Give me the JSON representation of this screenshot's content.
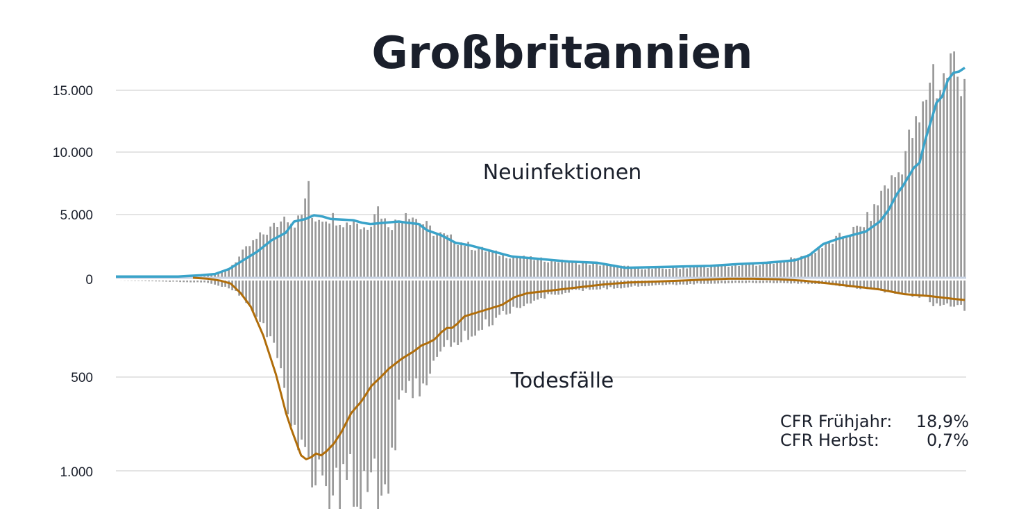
{
  "chart_data": {
    "type": "bar",
    "title": "Großbritannien",
    "top_series_label": "Neuinfektionen",
    "bottom_series_label": "Todesfälle",
    "top_yticks": [
      "15.000",
      "10.000",
      "5.000",
      "0"
    ],
    "bottom_yticks": [
      "500",
      "1.000"
    ],
    "top_ylim": [
      0,
      16000
    ],
    "bottom_ylim": [
      0,
      1100
    ],
    "colors": {
      "bars": "#9a9a9a",
      "infections_avg": "#3aa3c9",
      "deaths_avg": "#b06d0a",
      "grid": "#dcdcdc",
      "zero": "#c8d3e3"
    },
    "n_days": 245,
    "infections_bars_anchors": [
      [
        0,
        0
      ],
      [
        20,
        20
      ],
      [
        26,
        60
      ],
      [
        30,
        150
      ],
      [
        33,
        300
      ],
      [
        36,
        600
      ],
      [
        38,
        900
      ],
      [
        40,
        1400
      ],
      [
        42,
        2000
      ],
      [
        45,
        2700
      ],
      [
        47,
        3100
      ],
      [
        49,
        3500
      ],
      [
        52,
        4000
      ],
      [
        55,
        4500
      ],
      [
        56,
        5400
      ],
      [
        58,
        4600
      ],
      [
        60,
        4400
      ],
      [
        62,
        5000
      ],
      [
        64,
        7800
      ],
      [
        65,
        4800
      ],
      [
        70,
        4900
      ],
      [
        75,
        4700
      ],
      [
        77,
        4300
      ],
      [
        80,
        4800
      ],
      [
        82,
        3900
      ],
      [
        85,
        4300
      ],
      [
        86,
        5500
      ],
      [
        88,
        5600
      ],
      [
        90,
        4500
      ],
      [
        92,
        4300
      ],
      [
        95,
        4500
      ],
      [
        97,
        5500
      ],
      [
        100,
        4800
      ],
      [
        103,
        4300
      ],
      [
        106,
        3700
      ],
      [
        110,
        3300
      ],
      [
        115,
        2900
      ],
      [
        120,
        2400
      ],
      [
        125,
        2100
      ],
      [
        130,
        1800
      ],
      [
        140,
        1500
      ],
      [
        150,
        1300
      ],
      [
        160,
        1100
      ],
      [
        170,
        900
      ],
      [
        180,
        700
      ],
      [
        190,
        800
      ],
      [
        200,
        900
      ],
      [
        210,
        1000
      ],
      [
        220,
        1200
      ],
      [
        230,
        1600
      ],
      [
        235,
        2200
      ],
      [
        240,
        2800
      ],
      [
        245,
        3500
      ],
      [
        250,
        4000
      ],
      [
        255,
        5500
      ],
      [
        258,
        7400
      ],
      [
        260,
        7600
      ],
      [
        263,
        8500
      ],
      [
        266,
        10800
      ],
      [
        268,
        11700
      ],
      [
        270,
        12300
      ],
      [
        272,
        14400
      ],
      [
        274,
        17200
      ],
      [
        276,
        15000
      ],
      [
        279,
        16300
      ],
      [
        281,
        17700
      ],
      [
        283,
        15800
      ],
      [
        285,
        16500
      ]
    ],
    "infections_avg_anchors": [
      [
        0,
        100
      ],
      [
        22,
        100
      ],
      [
        26,
        150
      ],
      [
        30,
        200
      ],
      [
        35,
        300
      ],
      [
        40,
        700
      ],
      [
        45,
        1400
      ],
      [
        50,
        2100
      ],
      [
        55,
        3000
      ],
      [
        60,
        3600
      ],
      [
        63,
        4500
      ],
      [
        67,
        4700
      ],
      [
        70,
        5000
      ],
      [
        73,
        4900
      ],
      [
        76,
        4700
      ],
      [
        80,
        4650
      ],
      [
        84,
        4600
      ],
      [
        87,
        4400
      ],
      [
        90,
        4300
      ],
      [
        95,
        4400
      ],
      [
        100,
        4500
      ],
      [
        103,
        4400
      ],
      [
        107,
        4300
      ],
      [
        110,
        3800
      ],
      [
        115,
        3400
      ],
      [
        120,
        2800
      ],
      [
        125,
        2600
      ],
      [
        130,
        2300
      ],
      [
        140,
        1700
      ],
      [
        150,
        1500
      ],
      [
        160,
        1300
      ],
      [
        170,
        1200
      ],
      [
        180,
        800
      ],
      [
        190,
        850
      ],
      [
        200,
        900
      ],
      [
        210,
        950
      ],
      [
        220,
        1100
      ],
      [
        230,
        1200
      ],
      [
        235,
        1300
      ],
      [
        240,
        1400
      ],
      [
        245,
        1800
      ],
      [
        250,
        2700
      ],
      [
        255,
        3100
      ],
      [
        260,
        3400
      ],
      [
        265,
        3700
      ],
      [
        270,
        4500
      ],
      [
        273,
        5400
      ],
      [
        276,
        6700
      ],
      [
        278,
        7300
      ],
      [
        282,
        8800
      ],
      [
        284,
        9200
      ],
      [
        286,
        11000
      ],
      [
        288,
        12500
      ],
      [
        290,
        14000
      ],
      [
        292,
        14500
      ],
      [
        294,
        15800
      ],
      [
        296,
        16400
      ],
      [
        298,
        16500
      ],
      [
        300,
        16800
      ]
    ],
    "deaths_bars_anchors": [
      [
        0,
        0
      ],
      [
        30,
        10
      ],
      [
        34,
        25
      ],
      [
        38,
        40
      ],
      [
        42,
        80
      ],
      [
        46,
        150
      ],
      [
        50,
        260
      ],
      [
        53,
        330
      ],
      [
        56,
        600
      ],
      [
        58,
        700
      ],
      [
        60,
        780
      ],
      [
        63,
        900
      ],
      [
        65,
        950
      ],
      [
        67,
        1000
      ],
      [
        69,
        1050
      ],
      [
        71,
        1150
      ],
      [
        73,
        1100
      ],
      [
        75,
        1100
      ],
      [
        78,
        1000
      ],
      [
        81,
        1100
      ],
      [
        84,
        980
      ],
      [
        86,
        950
      ],
      [
        89,
        1160
      ],
      [
        91,
        1000
      ],
      [
        93,
        800
      ],
      [
        96,
        650
      ],
      [
        99,
        560
      ],
      [
        102,
        520
      ],
      [
        105,
        480
      ],
      [
        108,
        420
      ],
      [
        111,
        340
      ],
      [
        115,
        300
      ],
      [
        120,
        280
      ],
      [
        125,
        220
      ],
      [
        130,
        170
      ],
      [
        135,
        130
      ],
      [
        140,
        110
      ],
      [
        145,
        80
      ],
      [
        150,
        60
      ],
      [
        160,
        45
      ],
      [
        170,
        35
      ],
      [
        180,
        25
      ],
      [
        190,
        20
      ],
      [
        200,
        15
      ],
      [
        210,
        12
      ],
      [
        220,
        12
      ],
      [
        230,
        15
      ],
      [
        240,
        20
      ],
      [
        250,
        40
      ],
      [
        260,
        60
      ],
      [
        265,
        70
      ],
      [
        270,
        80
      ],
      [
        275,
        120
      ],
      [
        280,
        140
      ],
      [
        285,
        150
      ]
    ],
    "deaths_avg_anchors": [
      [
        27,
        0
      ],
      [
        33,
        5
      ],
      [
        38,
        15
      ],
      [
        42,
        30
      ],
      [
        46,
        80
      ],
      [
        50,
        150
      ],
      [
        55,
        300
      ],
      [
        58,
        420
      ],
      [
        60,
        500
      ],
      [
        62,
        600
      ],
      [
        64,
        700
      ],
      [
        66,
        780
      ],
      [
        68,
        850
      ],
      [
        70,
        920
      ],
      [
        72,
        940
      ],
      [
        74,
        930
      ],
      [
        76,
        910
      ],
      [
        78,
        920
      ],
      [
        80,
        900
      ],
      [
        83,
        860
      ],
      [
        86,
        800
      ],
      [
        90,
        700
      ],
      [
        94,
        640
      ],
      [
        98,
        560
      ],
      [
        102,
        510
      ],
      [
        105,
        470
      ],
      [
        110,
        420
      ],
      [
        115,
        380
      ],
      [
        118,
        350
      ],
      [
        120,
        340
      ],
      [
        123,
        320
      ],
      [
        126,
        280
      ],
      [
        128,
        260
      ],
      [
        130,
        260
      ],
      [
        132,
        240
      ],
      [
        135,
        200
      ],
      [
        140,
        180
      ],
      [
        145,
        160
      ],
      [
        150,
        140
      ],
      [
        155,
        100
      ],
      [
        160,
        80
      ],
      [
        170,
        65
      ],
      [
        180,
        50
      ],
      [
        190,
        35
      ],
      [
        200,
        25
      ],
      [
        210,
        20
      ],
      [
        220,
        15
      ],
      [
        230,
        10
      ],
      [
        240,
        5
      ],
      [
        250,
        5
      ],
      [
        260,
        8
      ],
      [
        270,
        15
      ],
      [
        280,
        30
      ],
      [
        290,
        45
      ],
      [
        300,
        60
      ],
      [
        310,
        85
      ],
      [
        320,
        95
      ],
      [
        330,
        110
      ],
      [
        334,
        115
      ]
    ]
  },
  "annotations": {
    "cfr_spring_label": "CFR Frühjahr:",
    "cfr_spring_value": "18,9%",
    "cfr_autumn_label": "CFR Herbst:",
    "cfr_autumn_value": "0,7%"
  }
}
